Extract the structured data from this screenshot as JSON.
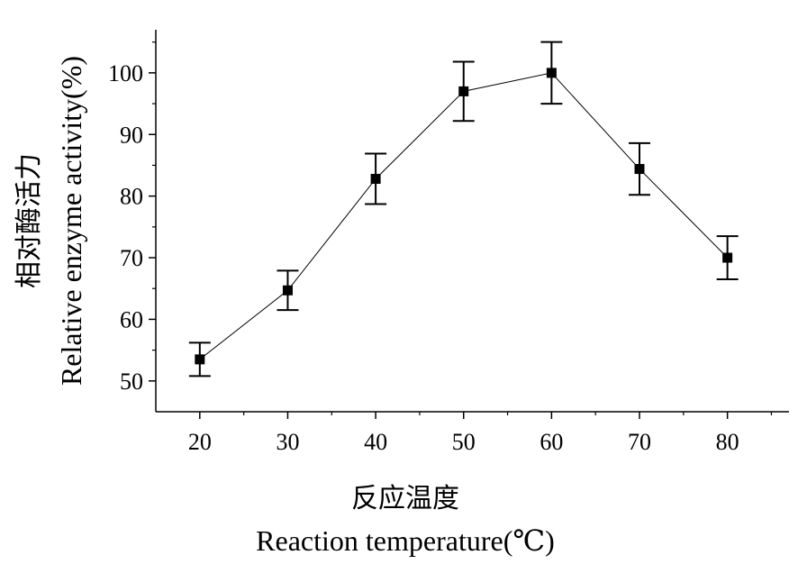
{
  "chart_data": {
    "type": "line",
    "x": [
      20,
      30,
      40,
      50,
      60,
      70,
      80
    ],
    "series": [
      {
        "values": [
          53.5,
          64.7,
          82.8,
          97.0,
          100.0,
          84.4,
          70.0
        ],
        "error": [
          2.7,
          3.2,
          4.1,
          4.8,
          5.0,
          4.2,
          3.5
        ]
      }
    ],
    "xlim": [
      15,
      87
    ],
    "ylim": [
      45,
      107
    ],
    "xticks": [
      20,
      30,
      40,
      50,
      60,
      70,
      80
    ],
    "yticks": [
      50,
      60,
      70,
      80,
      90,
      100
    ],
    "xlabel_cn": "反应温度",
    "xlabel": "Reaction temperature(℃)",
    "ylabel_cn": "相对酶活力",
    "ylabel": "Relative enzyme activity(%)",
    "grid": false,
    "legend": "none",
    "colors": {
      "line": "#000000",
      "marker": "#000000"
    }
  }
}
